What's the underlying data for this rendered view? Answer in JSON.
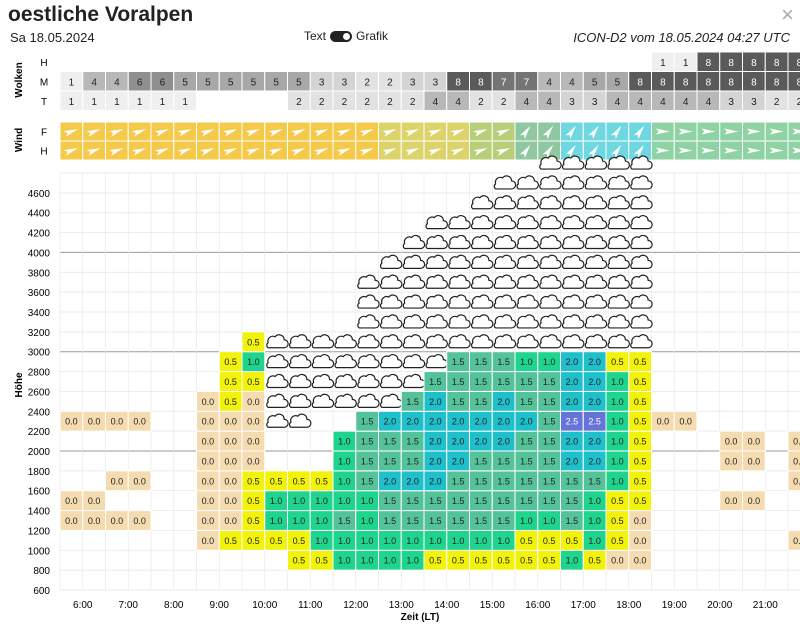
{
  "header": {
    "title": "oestliche Voralpen",
    "date": "Sa 18.05.2024",
    "model": "ICON-D2 vom 18.05.2024 04:27 UTC",
    "toggle_left": "Text",
    "toggle_right": "Grafik",
    "close": "×"
  },
  "sections": {
    "clouds": "Wolken",
    "wind": "Wind",
    "height": "Höhe",
    "time": "Zeit (LT)"
  },
  "cloud_rows": [
    {
      "label": "H",
      "values": [
        "",
        "",
        "",
        "",
        "",
        "",
        "",
        "",
        "",
        "",
        "",
        "",
        "",
        "",
        "",
        "",
        "",
        "",
        "",
        "",
        "",
        "",
        "",
        "",
        "",
        "",
        "1",
        "1",
        "8",
        "8",
        "8",
        "8",
        "8",
        "8"
      ]
    },
    {
      "label": "M",
      "values": [
        "1",
        "4",
        "4",
        "6",
        "6",
        "5",
        "5",
        "5",
        "5",
        "5",
        "5",
        "3",
        "3",
        "2",
        "2",
        "3",
        "3",
        "8",
        "8",
        "7",
        "7",
        "4",
        "4",
        "5",
        "5",
        "8",
        "8",
        "8",
        "8",
        "8",
        "8",
        "8",
        "8",
        "7"
      ]
    },
    {
      "label": "T",
      "values": [
        "1",
        "1",
        "1",
        "1",
        "1",
        "1",
        "",
        "",
        "",
        "",
        "2",
        "2",
        "2",
        "2",
        "2",
        "2",
        "4",
        "4",
        "2",
        "2",
        "4",
        "4",
        "3",
        "3",
        "4",
        "4",
        "4",
        "4",
        "4",
        "3",
        "3",
        "2",
        "2",
        "6"
      ]
    }
  ],
  "wind_rows": [
    {
      "label": "F"
    },
    {
      "label": "H"
    }
  ],
  "chart_data": {
    "type": "heatmap",
    "xlabel": "Zeit (LT)",
    "ylabel": "Höhe",
    "x_ticks": [
      "6:00",
      "7:00",
      "8:00",
      "9:00",
      "10:00",
      "11:00",
      "12:00",
      "13:00",
      "14:00",
      "15:00",
      "16:00",
      "17:00",
      "18:00",
      "19:00",
      "20:00",
      "21:00"
    ],
    "y_ticks": [
      "600",
      "800",
      "1000",
      "1200",
      "1400",
      "1600",
      "1800",
      "2000",
      "2200",
      "2400",
      "2600",
      "2800",
      "3000",
      "3200",
      "3400",
      "3600",
      "3800",
      "4000",
      "4200",
      "4400",
      "4600"
    ],
    "levels_from_bottom": [
      [
        "",
        "",
        "",
        "",
        "",
        "",
        "",
        "",
        "",
        "",
        "",
        "",
        "",
        "",
        "",
        "",
        "",
        "",
        "",
        "",
        "",
        "",
        "",
        "",
        "",
        "",
        "",
        "",
        "",
        "",
        "",
        "",
        "",
        ""
      ],
      [
        "",
        "",
        "",
        "",
        "",
        "",
        "",
        "",
        "",
        "",
        "0.5",
        "0.5",
        "1.0",
        "1.0",
        "1.0",
        "1.0",
        "0.5",
        "0.5",
        "0.5",
        "0.5",
        "0.5",
        "0.5",
        "1.0",
        "0.5",
        "0.0",
        "0.0",
        "",
        "",
        "",
        "",
        "",
        "",
        "",
        ""
      ],
      [
        "",
        "",
        "",
        "",
        "",
        "",
        "0.0",
        "0.5",
        "0.5",
        "0.5",
        "0.5",
        "1.0",
        "1.0",
        "1.0",
        "1.0",
        "1.0",
        "1.0",
        "1.0",
        "1.0",
        "1.0",
        "0.5",
        "0.5",
        "0.5",
        "1.0",
        "0.5",
        "0.0",
        "",
        "",
        "",
        "",
        "",
        "",
        "0.0",
        "0.0"
      ],
      [
        "0.0",
        "0.0",
        "0.0",
        "0.0",
        "",
        "",
        "0.0",
        "0.0",
        "0.5",
        "1.0",
        "1.0",
        "1.0",
        "1.5",
        "1.0",
        "1.5",
        "1.5",
        "1.5",
        "1.5",
        "1.5",
        "1.5",
        "1.0",
        "1.0",
        "1.5",
        "1.0",
        "0.5",
        "0.0",
        "",
        "",
        "",
        "",
        "",
        "",
        "",
        ""
      ],
      [
        "0.0",
        "0.0",
        "",
        "",
        "",
        "",
        "0.0",
        "0.0",
        "0.5",
        "1.0",
        "1.0",
        "1.0",
        "1.0",
        "1.0",
        "1.5",
        "1.5",
        "1.5",
        "1.5",
        "1.5",
        "1.5",
        "1.5",
        "1.5",
        "1.5",
        "1.0",
        "0.5",
        "0.5",
        "",
        "",
        "",
        "0.0",
        "0.0",
        "",
        "",
        ""
      ],
      [
        "",
        "",
        "0.0",
        "0.0",
        "",
        "",
        "0.0",
        "0.0",
        "0.5",
        "0.5",
        "0.5",
        "0.5",
        "1.0",
        "1.5",
        "2.0",
        "2.0",
        "2.0",
        "1.5",
        "1.5",
        "1.5",
        "1.5",
        "1.5",
        "1.5",
        "1.5",
        "1.0",
        "0.5",
        "",
        "",
        "",
        "",
        "",
        "",
        "0.0",
        "0.0"
      ],
      [
        "",
        "",
        "",
        "",
        "",
        "",
        "0.0",
        "0.0",
        "0.0",
        "",
        "",
        "",
        "1.0",
        "1.5",
        "1.5",
        "1.5",
        "2.0",
        "2.0",
        "1.5",
        "1.5",
        "1.5",
        "1.5",
        "2.0",
        "2.0",
        "1.0",
        "0.5",
        "",
        "",
        "",
        "0.0",
        "0.0",
        "",
        "0.0",
        "0.0"
      ],
      [
        "",
        "",
        "",
        "",
        "",
        "",
        "0.0",
        "0.0",
        "0.0",
        "",
        "",
        "",
        "1.0",
        "1.5",
        "1.5",
        "1.5",
        "2.0",
        "2.0",
        "2.0",
        "2.0",
        "1.5",
        "1.5",
        "2.0",
        "2.0",
        "1.0",
        "0.5",
        "",
        "",
        "",
        "0.0",
        "0.0",
        "",
        "0.0",
        "0.0"
      ],
      [
        "0.0",
        "0.0",
        "0.0",
        "0.0",
        "",
        "",
        "0.0",
        "0.0",
        "0.0",
        "c",
        "c",
        "",
        "",
        "1.5",
        "2.0",
        "2.0",
        "2.0",
        "2.0",
        "2.0",
        "2.0",
        "2.0",
        "1.5",
        "2.5",
        "2.5",
        "1.0",
        "0.5",
        "0.0",
        "0.0",
        "",
        "",
        "",
        "",
        "",
        ""
      ],
      [
        "",
        "",
        "",
        "",
        "",
        "",
        "0.0",
        "0.5",
        "0.0",
        "c",
        "c",
        "c",
        "c",
        "c",
        "c",
        "1.5",
        "2.0",
        "1.5",
        "1.5",
        "2.0",
        "1.5",
        "1.5",
        "2.0",
        "2.0",
        "1.0",
        "0.5",
        "",
        "",
        "",
        "",
        "",
        "",
        "",
        ""
      ],
      [
        "",
        "",
        "",
        "",
        "",
        "",
        "",
        "0.5",
        "0.5",
        "c",
        "c",
        "c",
        "c",
        "c",
        "c",
        "c",
        "1.5",
        "1.5",
        "1.5",
        "1.5",
        "1.5",
        "1.5",
        "2.0",
        "2.0",
        "1.0",
        "0.5",
        "",
        "",
        "",
        "",
        "",
        "",
        "",
        ""
      ],
      [
        "",
        "",
        "",
        "",
        "",
        "",
        "",
        "0.5",
        "1.0",
        "c",
        "c",
        "c",
        "c",
        "c",
        "c",
        "c",
        "c",
        "1.5",
        "1.5",
        "1.5",
        "1.0",
        "1.0",
        "2.0",
        "2.0",
        "0.5",
        "0.5",
        "",
        "",
        "",
        "",
        "",
        "",
        "",
        ""
      ],
      [
        "",
        "",
        "",
        "",
        "",
        "",
        "",
        "",
        "0.5",
        "c",
        "c",
        "c",
        "c",
        "c",
        "c",
        "c",
        "c",
        "c",
        "c",
        "c",
        "c",
        "c",
        "c",
        "c",
        "c",
        "c",
        "",
        "",
        "",
        "",
        "",
        "",
        "",
        ""
      ],
      [
        "",
        "",
        "",
        "",
        "",
        "",
        "",
        "",
        "",
        "",
        "",
        "",
        "",
        "c",
        "c",
        "c",
        "c",
        "c",
        "c",
        "c",
        "c",
        "c",
        "c",
        "c",
        "c",
        "c",
        "",
        "",
        "",
        "",
        "",
        "",
        "",
        ""
      ],
      [
        "",
        "",
        "",
        "",
        "",
        "",
        "",
        "",
        "",
        "",
        "",
        "",
        "",
        "c",
        "c",
        "c",
        "c",
        "c",
        "c",
        "c",
        "c",
        "c",
        "c",
        "c",
        "c",
        "c",
        "",
        "",
        "",
        "",
        "",
        "",
        "",
        ""
      ],
      [
        "",
        "",
        "",
        "",
        "",
        "",
        "",
        "",
        "",
        "",
        "",
        "",
        "",
        "c",
        "c",
        "c",
        "c",
        "c",
        "c",
        "c",
        "c",
        "c",
        "c",
        "c",
        "c",
        "c",
        "",
        "",
        "",
        "",
        "",
        "",
        "",
        ""
      ],
      [
        "",
        "",
        "",
        "",
        "",
        "",
        "",
        "",
        "",
        "",
        "",
        "",
        "",
        "",
        "c",
        "c",
        "c",
        "c",
        "c",
        "c",
        "c",
        "c",
        "c",
        "c",
        "c",
        "c",
        "",
        "",
        "",
        "",
        "",
        "",
        "",
        ""
      ],
      [
        "",
        "",
        "",
        "",
        "",
        "",
        "",
        "",
        "",
        "",
        "",
        "",
        "",
        "",
        "",
        "c",
        "c",
        "c",
        "c",
        "c",
        "c",
        "c",
        "c",
        "c",
        "c",
        "c",
        "",
        "",
        "",
        "",
        "",
        "",
        "",
        ""
      ],
      [
        "",
        "",
        "",
        "",
        "",
        "",
        "",
        "",
        "",
        "",
        "",
        "",
        "",
        "",
        "",
        "",
        "c",
        "c",
        "c",
        "c",
        "c",
        "c",
        "c",
        "c",
        "c",
        "c",
        "",
        "",
        "",
        "",
        "",
        "",
        "",
        ""
      ],
      [
        "",
        "",
        "",
        "",
        "",
        "",
        "",
        "",
        "",
        "",
        "",
        "",
        "",
        "",
        "",
        "",
        "",
        "",
        "c",
        "c",
        "c",
        "c",
        "c",
        "c",
        "c",
        "c",
        "",
        "",
        "",
        "",
        "",
        "",
        "",
        ""
      ],
      [
        "",
        "",
        "",
        "",
        "",
        "",
        "",
        "",
        "",
        "",
        "",
        "",
        "",
        "",
        "",
        "",
        "",
        "",
        "",
        "c",
        "c",
        "c",
        "c",
        "c",
        "c",
        "c",
        "",
        "",
        "",
        "",
        "",
        "",
        "",
        ""
      ],
      [
        "",
        "",
        "",
        "",
        "",
        "",
        "",
        "",
        "",
        "",
        "",
        "",
        "",
        "",
        "",
        "",
        "",
        "",
        "",
        "",
        "",
        "c",
        "c",
        "c",
        "c",
        "c",
        "",
        "",
        "",
        "",
        "",
        "",
        "",
        ""
      ]
    ]
  }
}
